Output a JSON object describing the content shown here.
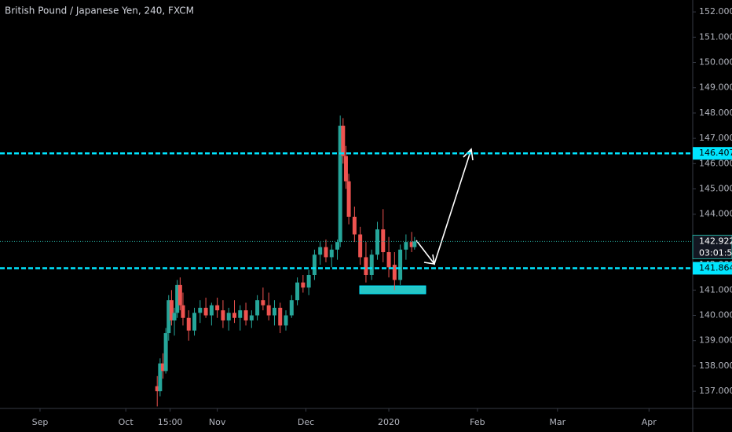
{
  "chart_data": {
    "type": "candlestick",
    "title": "British Pound / Japanese Yen, 240, FXCM",
    "up_color": "#26a69a",
    "down_color": "#ef5350",
    "x": [
      41,
      42,
      43,
      44,
      45,
      46,
      47,
      48,
      49,
      50,
      52,
      54,
      56,
      58,
      60,
      62,
      64,
      66,
      68,
      70,
      72,
      74,
      76,
      78,
      80,
      82,
      84,
      86,
      88,
      90,
      92,
      94,
      96,
      98,
      100,
      102,
      104,
      105,
      106,
      107,
      108,
      110,
      112,
      114,
      116,
      118,
      120,
      122,
      124,
      126,
      128,
      130,
      131
    ],
    "open": [
      137.2,
      137.0,
      138.1,
      137.8,
      139.3,
      140.6,
      139.8,
      140.1,
      141.2,
      140.4,
      139.9,
      139.4,
      140.1,
      140.3,
      140.0,
      140.4,
      140.2,
      139.8,
      140.1,
      139.9,
      140.2,
      139.8,
      140.0,
      140.6,
      140.4,
      140.0,
      140.3,
      139.6,
      140.0,
      140.6,
      141.3,
      141.1,
      141.6,
      142.4,
      142.7,
      142.3,
      142.6,
      142.9,
      147.5,
      146.3,
      145.3,
      143.9,
      143.2,
      142.3,
      141.6,
      142.4,
      143.4,
      142.5,
      142.0,
      141.4,
      142.6,
      142.9,
      142.7
    ],
    "high": [
      137.6,
      138.3,
      138.5,
      139.5,
      140.8,
      141.0,
      140.3,
      141.4,
      141.5,
      140.9,
      140.2,
      140.3,
      140.6,
      140.7,
      140.5,
      140.7,
      140.6,
      140.3,
      140.6,
      140.4,
      140.5,
      140.2,
      140.8,
      141.1,
      140.9,
      140.6,
      140.5,
      140.2,
      140.8,
      141.5,
      141.6,
      141.8,
      142.6,
      142.9,
      143.0,
      142.8,
      143.0,
      147.9,
      147.8,
      146.7,
      145.6,
      144.3,
      143.5,
      142.9,
      142.6,
      143.7,
      144.2,
      143.1,
      142.5,
      142.8,
      143.2,
      143.3,
      143.1
    ],
    "low": [
      136.4,
      136.8,
      137.5,
      137.7,
      139.0,
      139.6,
      139.2,
      139.9,
      140.2,
      139.6,
      139.0,
      139.2,
      139.7,
      139.9,
      139.6,
      139.9,
      139.5,
      139.4,
      139.7,
      139.4,
      139.6,
      139.5,
      139.8,
      140.2,
      139.8,
      139.6,
      139.3,
      139.4,
      139.9,
      140.4,
      140.9,
      140.8,
      141.4,
      142.0,
      142.1,
      141.9,
      142.2,
      142.7,
      146.0,
      145.0,
      143.6,
      142.9,
      142.0,
      141.3,
      141.4,
      142.2,
      142.1,
      141.5,
      141.0,
      141.2,
      142.2,
      142.5,
      142.6
    ],
    "close": [
      137.0,
      138.1,
      137.8,
      139.3,
      140.6,
      139.8,
      140.1,
      141.2,
      140.4,
      139.9,
      139.4,
      140.1,
      140.3,
      140.0,
      140.4,
      140.2,
      139.8,
      140.1,
      139.9,
      140.2,
      139.8,
      140.0,
      140.6,
      140.4,
      140.0,
      140.3,
      139.6,
      140.0,
      140.6,
      141.3,
      141.1,
      141.6,
      142.4,
      142.7,
      142.3,
      142.6,
      142.9,
      147.5,
      146.3,
      145.3,
      143.9,
      143.2,
      142.3,
      141.6,
      142.4,
      143.4,
      142.5,
      141.9,
      141.4,
      142.6,
      142.9,
      142.7,
      142.922
    ],
    "xlim": [
      -14,
      228.3
    ],
    "xticks": [
      {
        "value": 0,
        "label": "Sep"
      },
      {
        "value": 30,
        "label": "Oct"
      },
      {
        "value": 45.5,
        "label": "15:00"
      },
      {
        "value": 62,
        "label": "Nov"
      },
      {
        "value": 93,
        "label": "Dec"
      },
      {
        "value": 122,
        "label": "2020"
      },
      {
        "value": 153,
        "label": "Feb"
      },
      {
        "value": 181,
        "label": "Mar"
      },
      {
        "value": 213,
        "label": "Apr"
      }
    ],
    "ylim": [
      136.32,
      152.47
    ],
    "yticks": [
      {
        "value": 137,
        "label": "137.000"
      },
      {
        "value": 138,
        "label": "138.000"
      },
      {
        "value": 139,
        "label": "139.000"
      },
      {
        "value": 140,
        "label": "140.000"
      },
      {
        "value": 141,
        "label": "141.000"
      },
      {
        "value": 142,
        "label": "142.000"
      },
      {
        "value": 143,
        "label": "143.000"
      },
      {
        "value": 144,
        "label": "144.000"
      },
      {
        "value": 145,
        "label": "145.000"
      },
      {
        "value": 146,
        "label": "146.000"
      },
      {
        "value": 147,
        "label": "147.000"
      },
      {
        "value": 148,
        "label": "148.000"
      },
      {
        "value": 149,
        "label": "149.000"
      },
      {
        "value": 150,
        "label": "150.000"
      },
      {
        "value": 151,
        "label": "151.000"
      },
      {
        "value": 152,
        "label": "152.000"
      }
    ],
    "levels": [
      {
        "value": 146.407,
        "color": "#00e5ff"
      },
      {
        "value": 141.864,
        "color": "#00e5ff"
      }
    ],
    "last_price": 142.922,
    "last_price_color": "#26a69a",
    "countdown": "03:01:51"
  }
}
